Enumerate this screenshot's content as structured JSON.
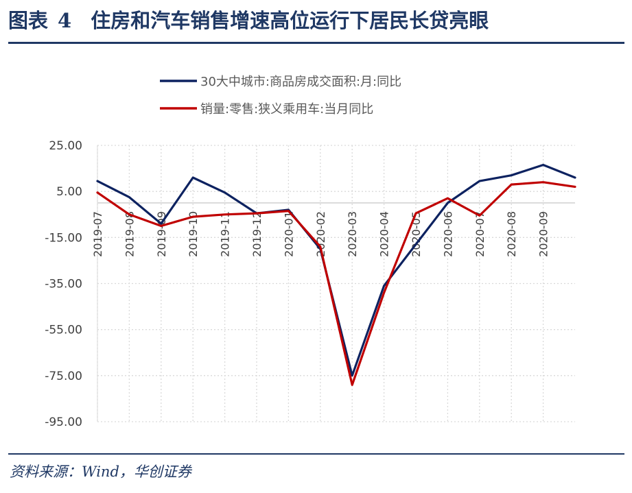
{
  "figure": {
    "title_label": "图表",
    "title_number": "4",
    "title_text": "住房和汽车销售增速高位运行下居民长贷亮眼",
    "source": "资料来源：Wind，华创证券"
  },
  "colors": {
    "accent": "#1f3864",
    "series_1": "#0d2260",
    "series_2": "#c00000",
    "grid": "#d9d9d9"
  },
  "chart_data": {
    "type": "line",
    "title": "",
    "xlabel": "",
    "ylabel": "",
    "ylim": [
      -95,
      25
    ],
    "yticks": [
      25,
      5,
      -15,
      -35,
      -55,
      -75,
      -95
    ],
    "ytick_labels": [
      "25.00",
      "5.00",
      "-15.00",
      "-35.00",
      "-55.00",
      "-75.00",
      "-95.00"
    ],
    "x": [
      "2019-07",
      "2019-08",
      "2019-09",
      "2019-10",
      "2019-11",
      "2019-12",
      "2020-01",
      "2020-02",
      "2020-03",
      "2020-04",
      "2020-05",
      "2020-06",
      "2020-07",
      "2020-08",
      "2020-09",
      "2020-10"
    ],
    "xtick_labels": [
      "2019-07",
      "2019-08",
      "2019-09",
      "2019-10",
      "2019-11",
      "2019-12",
      "2020-01",
      "2020-02",
      "2020-03",
      "2020-04",
      "2020-05",
      "2020-06",
      "2020-07",
      "2020-08",
      "2020-09"
    ],
    "grid": true,
    "legend_position": "top",
    "series": [
      {
        "name": "30大中城市:商品房成交面积:月:同比",
        "values": [
          9.5,
          2.5,
          -9,
          11,
          4.5,
          -4.5,
          -3,
          -20,
          -75,
          -36,
          -18,
          0,
          9.5,
          12,
          16.5,
          11
        ]
      },
      {
        "name": "销量:零售:狭义乘用车:当月同比",
        "values": [
          4.5,
          -5,
          -10,
          -6,
          -5,
          -4.5,
          -3.5,
          -19,
          -79,
          -39,
          -4.5,
          2,
          -5.5,
          8,
          9,
          7
        ]
      }
    ]
  }
}
